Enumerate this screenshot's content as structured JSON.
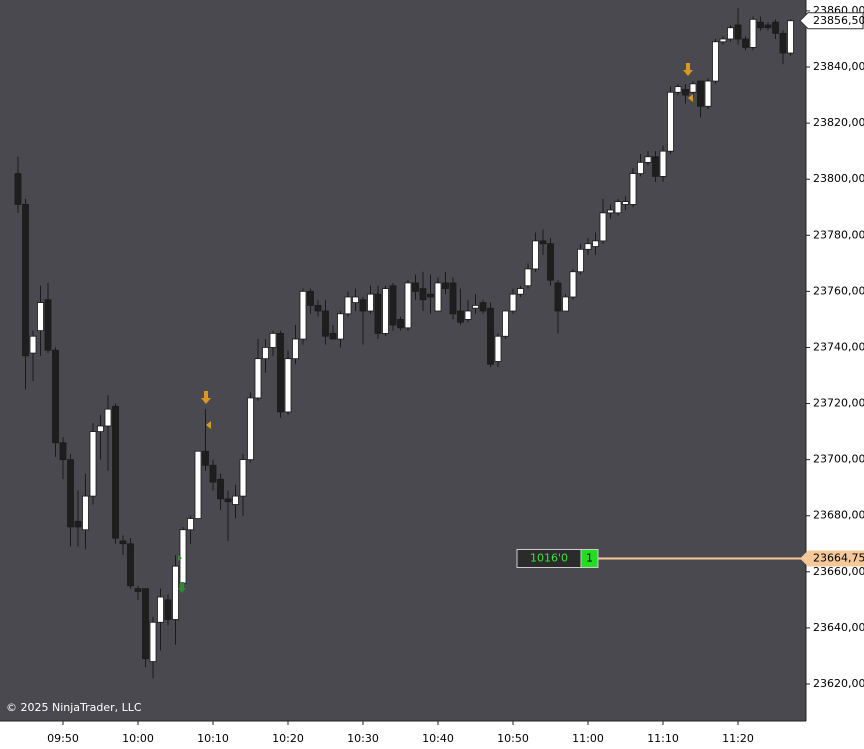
{
  "chart_data": {
    "type": "candlestick",
    "categories": [
      null,
      null,
      null,
      null,
      null,
      null,
      "09:50",
      null,
      null,
      null,
      null,
      null,
      null,
      null,
      null,
      null,
      "10:00",
      null,
      null,
      null,
      null,
      null,
      null,
      null,
      null,
      null,
      "10:10",
      null,
      null,
      null,
      null,
      null,
      null,
      null,
      null,
      null,
      "10:20",
      null,
      null,
      null,
      null,
      null,
      null,
      null,
      null,
      null,
      "10:30",
      null,
      null,
      null,
      null,
      null,
      null,
      null,
      null,
      null,
      "10:40",
      null,
      null,
      null,
      null,
      null,
      null,
      null,
      null,
      null,
      "10:50",
      null,
      null,
      null,
      null,
      null,
      null,
      null,
      null,
      null,
      "11:00",
      null,
      null,
      null,
      null,
      null,
      null,
      null,
      null,
      null,
      "11:10",
      null,
      null,
      null,
      null,
      null,
      null,
      null,
      null,
      null,
      "11:20",
      null,
      null,
      null,
      null,
      null,
      null,
      null
    ],
    "open": [
      23802,
      23791,
      23738,
      23746,
      23757,
      23739,
      23706,
      23700,
      23678,
      23675,
      23687,
      23710,
      23712,
      23719,
      23671,
      23670,
      23654,
      23654,
      23628,
      23642,
      23650,
      23643,
      23656,
      23675,
      23679,
      23703,
      23698,
      23693,
      23686,
      23684,
      23687,
      23700,
      23722,
      23736,
      23740,
      23745,
      23717,
      23736,
      23743,
      23760,
      23755,
      23753,
      23745,
      23743,
      23752,
      23756,
      23757,
      23753,
      23759,
      23745,
      23762,
      23750,
      23747,
      23763,
      23761,
      23759,
      23753,
      23763,
      23763,
      23753,
      23750,
      23754,
      23756,
      23754,
      23735,
      23744,
      23753,
      23759,
      23762,
      23768,
      23778,
      23777,
      23763,
      23753,
      23758,
      23767,
      23775,
      23776,
      23778,
      23788,
      23788,
      23791,
      23791,
      23802,
      23806,
      23808,
      23801,
      23810,
      23831,
      23832,
      23831,
      23835,
      23826,
      23835,
      23849,
      23850,
      23855,
      23850,
      23847,
      23856,
      23855,
      23856,
      23852,
      23845
    ],
    "high": [
      23808,
      23793,
      23746,
      23762,
      23763,
      23740,
      23708,
      23702,
      23689,
      23695,
      23713,
      23716,
      23723,
      23720,
      23673,
      23672,
      23655,
      23654,
      23644,
      23654,
      23652,
      23666,
      23676,
      23680,
      23703,
      23718,
      23700,
      23695,
      23689,
      23691,
      23702,
      23724,
      23743,
      23743,
      23746,
      23746,
      23739,
      23748,
      23761,
      23761,
      23757,
      23757,
      23748,
      23753,
      23760,
      23761,
      23758,
      23762,
      23762,
      23762,
      23763,
      23751,
      23764,
      23766,
      23767,
      23766,
      23765,
      23767,
      23765,
      23761,
      23757,
      23759,
      23757,
      23756,
      23745,
      23753,
      23761,
      23762,
      23770,
      23781,
      23782,
      23779,
      23764,
      23759,
      23768,
      23777,
      23779,
      23781,
      23793,
      23791,
      23793,
      23794,
      23804,
      23809,
      23810,
      23810,
      23812,
      23833,
      23834,
      23834,
      23835,
      23835,
      23836,
      23850,
      23851,
      23855,
      23861,
      23851,
      23858,
      23858,
      23856,
      23857,
      23853,
      23857
    ],
    "low": [
      23788,
      23725,
      23728,
      23737,
      23738,
      23701,
      23693,
      23669,
      23669,
      23668,
      23684,
      23700,
      23696,
      23670,
      23666,
      23654,
      23650,
      23626,
      23622,
      23632,
      23641,
      23634,
      23654,
      23670,
      23679,
      23696,
      23689,
      23682,
      23671,
      23679,
      23680,
      23699,
      23721,
      23731,
      23737,
      23715,
      23716,
      23734,
      23741,
      23752,
      23751,
      23741,
      23743,
      23740,
      23751,
      23753,
      23741,
      23752,
      23743,
      23744,
      23746,
      23746,
      23746,
      23757,
      23753,
      23752,
      23753,
      23759,
      23750,
      23748,
      23749,
      23752,
      23752,
      23733,
      23733,
      23743,
      23752,
      23758,
      23761,
      23767,
      23773,
      23762,
      23745,
      23753,
      23757,
      23766,
      23773,
      23773,
      23777,
      23786,
      23787,
      23789,
      23790,
      23801,
      23805,
      23799,
      23799,
      23809,
      23830,
      23827,
      23829,
      23822,
      23825,
      23834,
      23848,
      23849,
      23848,
      23846,
      23846,
      23853,
      23853,
      23850,
      23841,
      23844
    ],
    "close": [
      23791,
      23737,
      23744,
      23756,
      23739,
      23706,
      23700,
      23676,
      23676,
      23687,
      23710,
      23712,
      23718,
      23672,
      23670,
      23655,
      23653,
      23629,
      23642,
      23651,
      23643,
      23662,
      23675,
      23679,
      23703,
      23698,
      23692,
      23686,
      23685,
      23687,
      23700,
      23722,
      23736,
      23740,
      23745,
      23717,
      23736,
      23743,
      23760,
      23755,
      23753,
      23744,
      23743,
      23752,
      23758,
      23758,
      23753,
      23759,
      23745,
      23761,
      23748,
      23747,
      23763,
      23760,
      23757,
      23758,
      23763,
      23761,
      23752,
      23749,
      23753,
      23755,
      23753,
      23734,
      23744,
      23753,
      23759,
      23761,
      23768,
      23778,
      23777,
      23764,
      23753,
      23758,
      23767,
      23775,
      23777,
      23778,
      23788,
      23789,
      23792,
      23792,
      23802,
      23806,
      23808,
      23801,
      23810,
      23831,
      23833,
      23830,
      23834,
      23826,
      23835,
      23849,
      23850,
      23854,
      23850,
      23847,
      23857,
      23854,
      23854,
      23852,
      23845,
      23856.5
    ],
    "up_color": "#ffffff",
    "down_color": "#1e1e1e",
    "ylim": [
      23606.8,
      23863.9
    ],
    "yticks": [
      {
        "value": 23620,
        "label": "23620,00"
      },
      {
        "value": 23640,
        "label": "23640,00"
      },
      {
        "value": 23660,
        "label": "23660,00"
      },
      {
        "value": 23680,
        "label": "23680,00"
      },
      {
        "value": 23700,
        "label": "23700,00"
      },
      {
        "value": 23720,
        "label": "23720,00"
      },
      {
        "value": 23740,
        "label": "23740,00"
      },
      {
        "value": 23760,
        "label": "23760,00"
      },
      {
        "value": 23780,
        "label": "23780,00"
      },
      {
        "value": 23800,
        "label": "23800,00"
      },
      {
        "value": 23820,
        "label": "23820,00"
      },
      {
        "value": 23840,
        "label": "23840,00"
      },
      {
        "value": 23860,
        "label": "23860,00"
      }
    ],
    "last_price": {
      "value": 23856.5,
      "label": "23856,50"
    },
    "order_line": {
      "value": 23664.75,
      "label": "23664,75",
      "position": "1016'0",
      "quantity": "1",
      "color": "#f5c89a"
    },
    "copyright": "© 2025 NinjaTrader, LLC"
  }
}
